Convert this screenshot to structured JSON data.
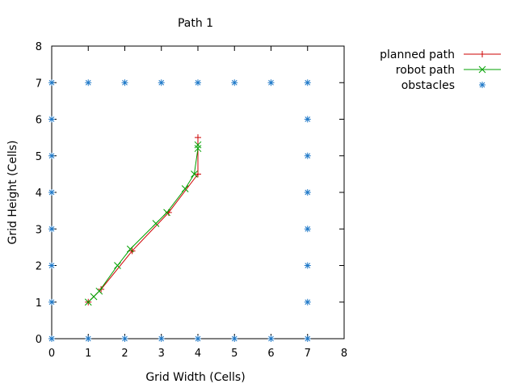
{
  "chart_data": {
    "type": "line",
    "title": "Path 1",
    "xlabel": "Grid Width (Cells)",
    "ylabel": "Grid Height (Cells)",
    "xlim": [
      0,
      8
    ],
    "ylim": [
      0,
      8
    ],
    "xticks": [
      0,
      1,
      2,
      3,
      4,
      5,
      6,
      7,
      8
    ],
    "yticks": [
      0,
      1,
      2,
      3,
      4,
      5,
      6,
      7,
      8
    ],
    "grid": false,
    "legend_position": "top-right-outside",
    "series": [
      {
        "name": "planned path",
        "color": "#cc0000",
        "marker": "plus",
        "points": [
          [
            1,
            1
          ],
          [
            1.35,
            1.35
          ],
          [
            2.2,
            2.4
          ],
          [
            3.2,
            3.45
          ],
          [
            4.0,
            4.5
          ],
          [
            4.0,
            5.5
          ]
        ]
      },
      {
        "name": "robot path",
        "color": "#00a000",
        "marker": "cross",
        "points": [
          [
            1,
            1
          ],
          [
            1.15,
            1.15
          ],
          [
            1.3,
            1.3
          ],
          [
            1.8,
            2.0
          ],
          [
            2.15,
            2.45
          ],
          [
            2.85,
            3.15
          ],
          [
            3.15,
            3.45
          ],
          [
            3.65,
            4.1
          ],
          [
            3.9,
            4.5
          ],
          [
            4.0,
            5.2
          ],
          [
            4.0,
            5.3
          ]
        ]
      },
      {
        "name": "obstacles",
        "color": "#1e78c8",
        "marker": "asterisk",
        "points": [
          [
            0,
            0
          ],
          [
            1,
            0
          ],
          [
            2,
            0
          ],
          [
            3,
            0
          ],
          [
            4,
            0
          ],
          [
            5,
            0
          ],
          [
            6,
            0
          ],
          [
            7,
            0
          ],
          [
            0,
            1
          ],
          [
            0,
            2
          ],
          [
            0,
            3
          ],
          [
            0,
            4
          ],
          [
            0,
            5
          ],
          [
            0,
            6
          ],
          [
            0,
            7
          ],
          [
            1,
            7
          ],
          [
            2,
            7
          ],
          [
            3,
            7
          ],
          [
            4,
            7
          ],
          [
            5,
            7
          ],
          [
            6,
            7
          ],
          [
            7,
            7
          ],
          [
            7,
            1
          ],
          [
            7,
            2
          ],
          [
            7,
            3
          ],
          [
            7,
            4
          ],
          [
            7,
            5
          ],
          [
            7,
            6
          ]
        ]
      }
    ]
  }
}
